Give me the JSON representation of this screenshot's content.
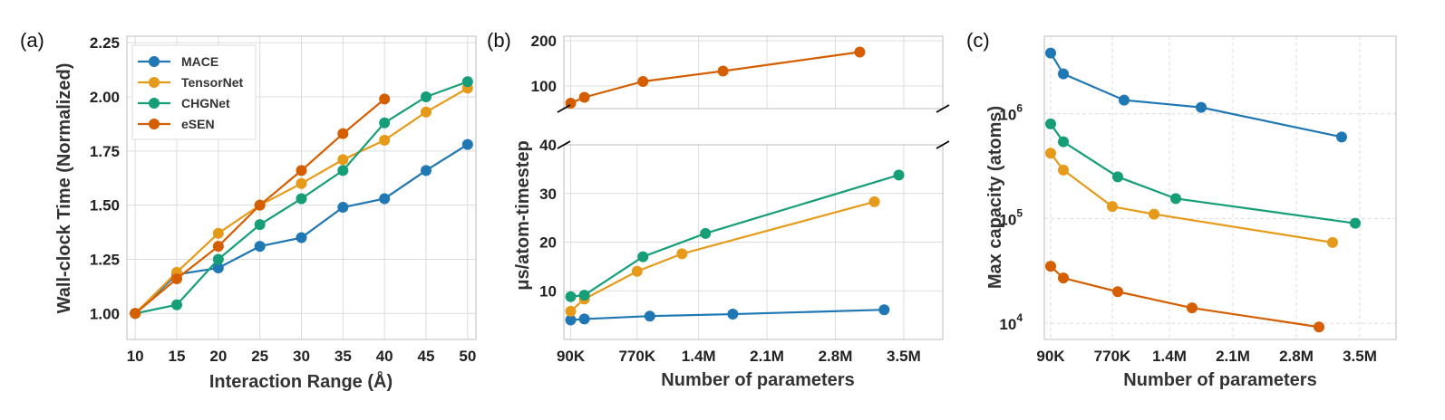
{
  "colors": {
    "MACE": "#1f77b4",
    "TensorNet": "#e69a1a",
    "CHGNet": "#159e78",
    "eSEN": "#d55e00"
  },
  "chart_data": [
    {
      "panel": "(a)",
      "type": "line",
      "xlabel": "Interaction Range (Å)",
      "ylabel": "Wall-clock Time (Normalized)",
      "xticks": [
        "10",
        "15",
        "20",
        "25",
        "30",
        "35",
        "40",
        "45",
        "50"
      ],
      "yticks": [
        "1.00",
        "1.25",
        "1.50",
        "1.75",
        "2.00",
        "2.25"
      ],
      "xlim": [
        9,
        51
      ],
      "ylim": [
        0.88,
        2.28
      ],
      "legend_position": "top-left",
      "series": [
        {
          "name": "MACE",
          "x": [
            10,
            15,
            20,
            25,
            30,
            35,
            40,
            45,
            50
          ],
          "y": [
            1.0,
            1.18,
            1.21,
            1.31,
            1.35,
            1.49,
            1.53,
            1.66,
            1.78
          ]
        },
        {
          "name": "TensorNet",
          "x": [
            10,
            15,
            20,
            25,
            30,
            35,
            40,
            45,
            50
          ],
          "y": [
            1.0,
            1.19,
            1.37,
            1.5,
            1.6,
            1.71,
            1.8,
            1.93,
            2.04
          ]
        },
        {
          "name": "CHGNet",
          "x": [
            10,
            15,
            20,
            25,
            30,
            35,
            40,
            45,
            50
          ],
          "y": [
            1.0,
            1.04,
            1.25,
            1.41,
            1.53,
            1.66,
            1.88,
            2.0,
            2.07
          ]
        },
        {
          "name": "eSEN",
          "x": [
            10,
            15,
            20,
            25,
            30,
            35,
            40
          ],
          "y": [
            1.0,
            1.16,
            1.31,
            1.5,
            1.66,
            1.83,
            1.99
          ]
        }
      ]
    },
    {
      "panel": "(b)",
      "type": "line",
      "xlabel": "Number of parameters",
      "ylabel": "μs/atom-timestep",
      "xticks": [
        "90K",
        "770K",
        "1.4M",
        "2.1M",
        "2.8M",
        "3.5M"
      ],
      "xtick_values": [
        90000,
        770000,
        1400000,
        2100000,
        2800000,
        3500000
      ],
      "yticks_upper": [
        "100",
        "200"
      ],
      "yticks_lower": [
        "10",
        "20",
        "30",
        "40"
      ],
      "xlim": [
        20000,
        3900000
      ],
      "ylim_upper": [
        50,
        210
      ],
      "ylim_lower": [
        0,
        40
      ],
      "broken_axis": true,
      "series": [
        {
          "name": "MACE",
          "x": [
            90000,
            230000,
            900000,
            1750000,
            3300000
          ],
          "y": [
            4.0,
            4.2,
            4.8,
            5.2,
            6.1
          ]
        },
        {
          "name": "TensorNet",
          "x": [
            90000,
            230000,
            770000,
            1230000,
            3200000
          ],
          "y": [
            5.8,
            8.3,
            14.0,
            17.6,
            28.3
          ]
        },
        {
          "name": "CHGNet",
          "x": [
            90000,
            230000,
            830000,
            1470000,
            3450000
          ],
          "y": [
            8.8,
            9.1,
            17.0,
            21.8,
            33.8
          ]
        },
        {
          "name": "eSEN",
          "x": [
            90000,
            230000,
            830000,
            1650000,
            3050000
          ],
          "y": [
            62,
            75,
            110,
            133,
            175
          ]
        }
      ]
    },
    {
      "panel": "(c)",
      "type": "line",
      "xlabel": "Number of parameters",
      "ylabel": "Max capacity (atoms)",
      "xticks": [
        "90K",
        "770K",
        "1.4M",
        "2.1M",
        "2.8M",
        "3.5M"
      ],
      "xtick_values": [
        90000,
        770000,
        1400000,
        2100000,
        2800000,
        3500000
      ],
      "yticks": [
        "10",
        "10",
        "10"
      ],
      "ytick_exponents": [
        "4",
        "5",
        "6"
      ],
      "ytick_values": [
        10000,
        100000,
        1000000
      ],
      "xlim": [
        20000,
        3900000
      ],
      "ylim": [
        7000,
        5500000
      ],
      "yscale": "log",
      "series": [
        {
          "name": "MACE",
          "x": [
            90000,
            230000,
            900000,
            1750000,
            3300000
          ],
          "y": [
            3800000,
            2400000,
            1350000,
            1150000,
            600000
          ]
        },
        {
          "name": "TensorNet",
          "x": [
            90000,
            230000,
            770000,
            1230000,
            3200000
          ],
          "y": [
            420000,
            290000,
            130000,
            110000,
            59000
          ]
        },
        {
          "name": "CHGNet",
          "x": [
            90000,
            230000,
            830000,
            1470000,
            3450000
          ],
          "y": [
            800000,
            540000,
            250000,
            155000,
            90000
          ]
        },
        {
          "name": "eSEN",
          "x": [
            90000,
            230000,
            830000,
            1650000,
            3050000
          ],
          "y": [
            35000,
            27000,
            20000,
            14000,
            9200
          ]
        }
      ]
    }
  ]
}
